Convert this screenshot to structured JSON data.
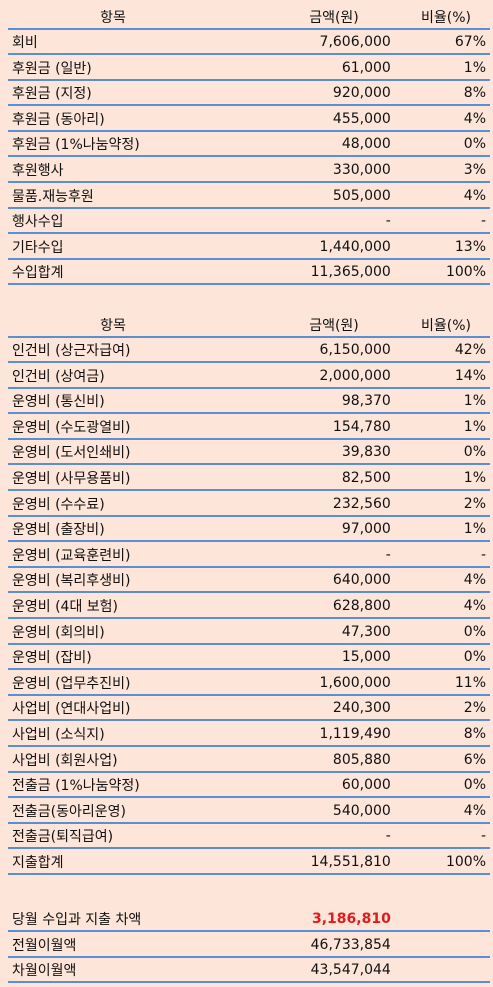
{
  "headers": {
    "item": "항목",
    "amount": "금액(원)",
    "ratio": "비율(%)"
  },
  "income": [
    {
      "item": "회비",
      "amount": "7,606,000",
      "ratio": "67%"
    },
    {
      "item": "후원금 (일반)",
      "amount": "61,000",
      "ratio": "1%"
    },
    {
      "item": "후원금 (지정)",
      "amount": "920,000",
      "ratio": "8%"
    },
    {
      "item": "후원금 (동아리)",
      "amount": "455,000",
      "ratio": "4%"
    },
    {
      "item": "후원금 (1%나눔약정)",
      "amount": "48,000",
      "ratio": "0%"
    },
    {
      "item": "후원행사",
      "amount": "330,000",
      "ratio": "3%"
    },
    {
      "item": "물품.재능후원",
      "amount": "505,000",
      "ratio": "4%"
    },
    {
      "item": "행사수입",
      "amount": "-",
      "ratio": "-"
    },
    {
      "item": "기타수입",
      "amount": "1,440,000",
      "ratio": "13%"
    },
    {
      "item": "수입합계",
      "amount": "11,365,000",
      "ratio": "100%"
    }
  ],
  "expense": [
    {
      "item": "인건비 (상근자급여)",
      "amount": "6,150,000",
      "ratio": "42%"
    },
    {
      "item": "인건비 (상여금)",
      "amount": "2,000,000",
      "ratio": "14%"
    },
    {
      "item": "운영비 (통신비)",
      "amount": "98,370",
      "ratio": "1%"
    },
    {
      "item": "운영비 (수도광열비)",
      "amount": "154,780",
      "ratio": "1%"
    },
    {
      "item": "운영비 (도서인쇄비)",
      "amount": "39,830",
      "ratio": "0%"
    },
    {
      "item": "운영비 (사무용품비)",
      "amount": "82,500",
      "ratio": "1%"
    },
    {
      "item": "운영비 (수수료)",
      "amount": "232,560",
      "ratio": "2%"
    },
    {
      "item": "운영비 (출장비)",
      "amount": "97,000",
      "ratio": "1%"
    },
    {
      "item": "운영비 (교육훈련비)",
      "amount": "-",
      "ratio": "-"
    },
    {
      "item": "운영비 (복리후생비)",
      "amount": "640,000",
      "ratio": "4%"
    },
    {
      "item": "운영비 (4대 보험)",
      "amount": "628,800",
      "ratio": "4%"
    },
    {
      "item": "운영비 (회의비)",
      "amount": "47,300",
      "ratio": "0%"
    },
    {
      "item": "운영비 (잡비)",
      "amount": "15,000",
      "ratio": "0%"
    },
    {
      "item": "운영비 (업무추진비)",
      "amount": "1,600,000",
      "ratio": "11%"
    },
    {
      "item": "사업비 (연대사업비)",
      "amount": "240,300",
      "ratio": "2%"
    },
    {
      "item": "사업비 (소식지)",
      "amount": "1,119,490",
      "ratio": "8%"
    },
    {
      "item": "사업비 (회원사업)",
      "amount": "805,880",
      "ratio": "6%"
    },
    {
      "item": "전출금 (1%나눔약정)",
      "amount": "60,000",
      "ratio": "0%"
    },
    {
      "item": "전출금(동아리운영)",
      "amount": "540,000",
      "ratio": "4%"
    },
    {
      "item": "전출금(퇴직급여)",
      "amount": "-",
      "ratio": "-"
    },
    {
      "item": "지출합계",
      "amount": "14,551,810",
      "ratio": "100%"
    }
  ],
  "summary": [
    {
      "item": "당월 수입과 지출 차액",
      "amount": "3,186,810",
      "ratio": ""
    },
    {
      "item": "전월이월액",
      "amount": "46,733,854",
      "ratio": ""
    },
    {
      "item": "차월이월액",
      "amount": "43,547,044",
      "ratio": ""
    }
  ],
  "colors": {
    "background": "#fde5d9",
    "rule": "#5b8fd0",
    "highlight": "#e11b1b"
  }
}
